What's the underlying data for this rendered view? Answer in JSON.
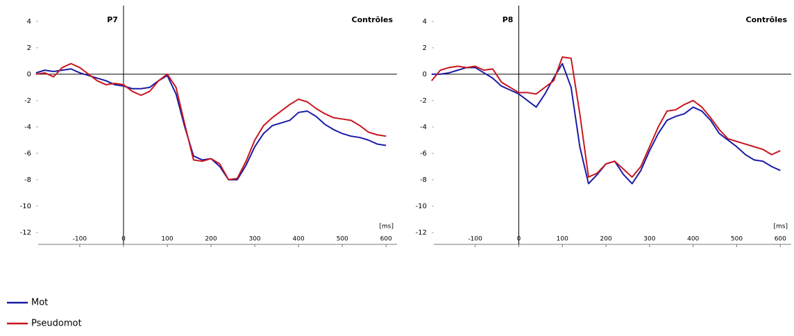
{
  "chart_data": [
    {
      "type": "line",
      "title": "P7",
      "subtitle": "Contrôles",
      "xlabel": "[ms]",
      "x": [
        -200,
        -180,
        -160,
        -140,
        -120,
        -100,
        -80,
        -60,
        -40,
        -20,
        0,
        20,
        40,
        60,
        80,
        100,
        120,
        140,
        160,
        180,
        200,
        220,
        240,
        260,
        280,
        300,
        320,
        340,
        360,
        380,
        400,
        420,
        440,
        460,
        480,
        500,
        520,
        540,
        560,
        580,
        600
      ],
      "series": [
        {
          "name": "Mot",
          "color": "#1a1aa6",
          "values": [
            0.1,
            0.3,
            0.2,
            0.3,
            0.4,
            0.1,
            -0.1,
            -0.3,
            -0.5,
            -0.8,
            -0.9,
            -1.1,
            -1.1,
            -1.0,
            -0.5,
            -0.1,
            -1.5,
            -4.0,
            -6.2,
            -6.5,
            -6.4,
            -7.0,
            -8.0,
            -8.0,
            -6.9,
            -5.5,
            -4.5,
            -3.9,
            -3.7,
            -3.5,
            -2.9,
            -2.8,
            -3.2,
            -3.8,
            -4.2,
            -4.5,
            -4.7,
            -4.8,
            -5.0,
            -5.3,
            -5.4
          ]
        },
        {
          "name": "Pseudomot",
          "color": "#c8161d",
          "values": [
            0.0,
            0.1,
            -0.2,
            0.5,
            0.8,
            0.5,
            0.0,
            -0.5,
            -0.8,
            -0.7,
            -0.8,
            -1.3,
            -1.6,
            -1.3,
            -0.5,
            0.0,
            -1.0,
            -3.8,
            -6.5,
            -6.6,
            -6.4,
            -6.8,
            -8.0,
            -7.9,
            -6.6,
            -5.0,
            -3.9,
            -3.3,
            -2.8,
            -2.3,
            -1.9,
            -2.1,
            -2.6,
            -3.0,
            -3.3,
            -3.4,
            -3.5,
            -3.9,
            -4.4,
            -4.6,
            -4.7
          ]
        }
      ],
      "xlim": [
        -195,
        625
      ],
      "xticks": [
        -100,
        0,
        100,
        200,
        300,
        400,
        500,
        600
      ],
      "ylim": [
        -12.9,
        5.2
      ],
      "yticks": [
        4,
        2,
        0,
        -2,
        -4,
        -6,
        -8,
        -10,
        -12
      ]
    },
    {
      "type": "line",
      "title": "P8",
      "subtitle": "Contrôles",
      "xlabel": "[ms]",
      "x": [
        -200,
        -180,
        -160,
        -140,
        -120,
        -100,
        -80,
        -60,
        -40,
        -20,
        0,
        20,
        40,
        60,
        80,
        100,
        120,
        140,
        160,
        180,
        200,
        220,
        240,
        260,
        280,
        300,
        320,
        340,
        360,
        380,
        400,
        420,
        440,
        460,
        480,
        500,
        520,
        540,
        560,
        580,
        600
      ],
      "series": [
        {
          "color": "#1a1aa6",
          "values": [
            0.0,
            0.0,
            0.1,
            0.3,
            0.5,
            0.5,
            0.1,
            -0.3,
            -0.9,
            -1.2,
            -1.5,
            -2.0,
            -2.5,
            -1.5,
            -0.3,
            0.8,
            -1.0,
            -5.5,
            -8.3,
            -7.6,
            -6.8,
            -6.6,
            -7.6,
            -8.3,
            -7.3,
            -5.8,
            -4.5,
            -3.5,
            -3.2,
            -3.0,
            -2.5,
            -2.8,
            -3.5,
            -4.5,
            -5.0,
            -5.5,
            -6.1,
            -6.5,
            -6.6,
            -7.0,
            -7.3
          ]
        },
        {
          "color": "#c8161d",
          "values": [
            -0.5,
            0.3,
            0.5,
            0.6,
            0.5,
            0.6,
            0.3,
            0.4,
            -0.6,
            -1.0,
            -1.4,
            -1.4,
            -1.5,
            -1.0,
            -0.5,
            1.3,
            1.2,
            -3.0,
            -7.8,
            -7.5,
            -6.8,
            -6.6,
            -7.2,
            -7.8,
            -7.0,
            -5.5,
            -4.0,
            -2.8,
            -2.7,
            -2.3,
            -2.0,
            -2.5,
            -3.3,
            -4.2,
            -4.9,
            -5.1,
            -5.3,
            -5.5,
            -5.7,
            -6.1,
            -5.8
          ]
        }
      ],
      "xlim": [
        -195,
        625
      ],
      "xticks": [
        -100,
        0,
        100,
        200,
        300,
        400,
        500,
        600
      ],
      "ylim": [
        -12.9,
        5.2
      ],
      "yticks": [
        4,
        2,
        0,
        -2,
        -4,
        -6,
        -8,
        -10,
        -12
      ]
    }
  ]
}
